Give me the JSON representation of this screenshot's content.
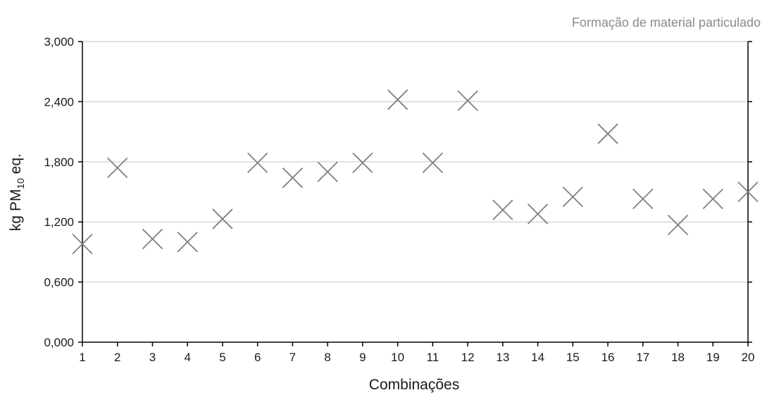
{
  "chart_data": {
    "type": "scatter",
    "title": "Formação de material particulado",
    "xlabel": "Combinações",
    "ylabel_main": "kg PM",
    "ylabel_sub": "10",
    "ylabel_tail": " eq.",
    "x": [
      1,
      2,
      3,
      4,
      5,
      6,
      7,
      8,
      9,
      10,
      11,
      12,
      13,
      14,
      15,
      16,
      17,
      18,
      19,
      20
    ],
    "x_tick_labels": [
      "1",
      "2",
      "3",
      "4",
      "5",
      "6",
      "7",
      "8",
      "9",
      "10",
      "11",
      "12",
      "13",
      "14",
      "15",
      "16",
      "17",
      "18",
      "19",
      "20"
    ],
    "series": [
      {
        "values": [
          0.98,
          1.74,
          1.03,
          1.0,
          1.23,
          1.79,
          1.64,
          1.7,
          1.79,
          2.42,
          1.79,
          2.41,
          1.32,
          1.28,
          1.45,
          2.08,
          1.43,
          1.17,
          1.43,
          1.5
        ],
        "marker": "x",
        "color": "#808080"
      }
    ],
    "y_ticks": [
      0.0,
      0.6,
      1.2,
      1.8,
      2.4,
      3.0
    ],
    "y_tick_labels": [
      "0,000",
      "0,600",
      "1,200",
      "1,800",
      "2,400",
      "3,000"
    ],
    "ylim": [
      0,
      3.0
    ],
    "xlim": [
      1,
      20
    ],
    "grid": "horizontal",
    "gridline_color": "#d9d9d9",
    "axis_color": "#000000"
  }
}
